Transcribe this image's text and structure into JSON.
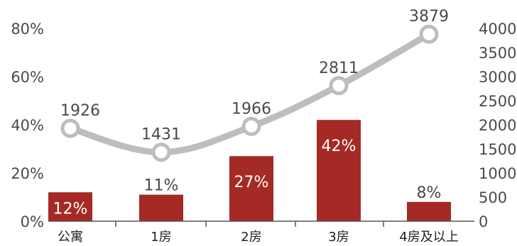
{
  "chart_data": {
    "type": "bar",
    "categories": [
      "公寓",
      "1房",
      "2房",
      "3房",
      "4房及以上"
    ],
    "series": [
      {
        "axis": "left",
        "type": "bar",
        "values": [
          12,
          11,
          27,
          42,
          8
        ],
        "labels": [
          "12%",
          "11%",
          "27%",
          "42%",
          "8%"
        ]
      },
      {
        "axis": "right",
        "type": "line",
        "values": [
          1926,
          1431,
          1966,
          2811,
          3879
        ],
        "labels": [
          "1926",
          "1431",
          "1966",
          "2811",
          "3879"
        ]
      }
    ],
    "left_axis": {
      "ylim": [
        0,
        80
      ],
      "ticks": [
        "0%",
        "20%",
        "40%",
        "60%",
        "80%"
      ]
    },
    "right_axis": {
      "ylim": [
        0,
        4000
      ],
      "ticks": [
        "0",
        "500",
        "1000",
        "1500",
        "2000",
        "2500",
        "3000",
        "3500",
        "4000"
      ]
    },
    "grid": false,
    "colors": {
      "bar": "#a52a25",
      "line": "#bdbdbd",
      "marker_fill": "#ffffff",
      "text": "#4a4a4a",
      "axis": "#555555"
    }
  }
}
